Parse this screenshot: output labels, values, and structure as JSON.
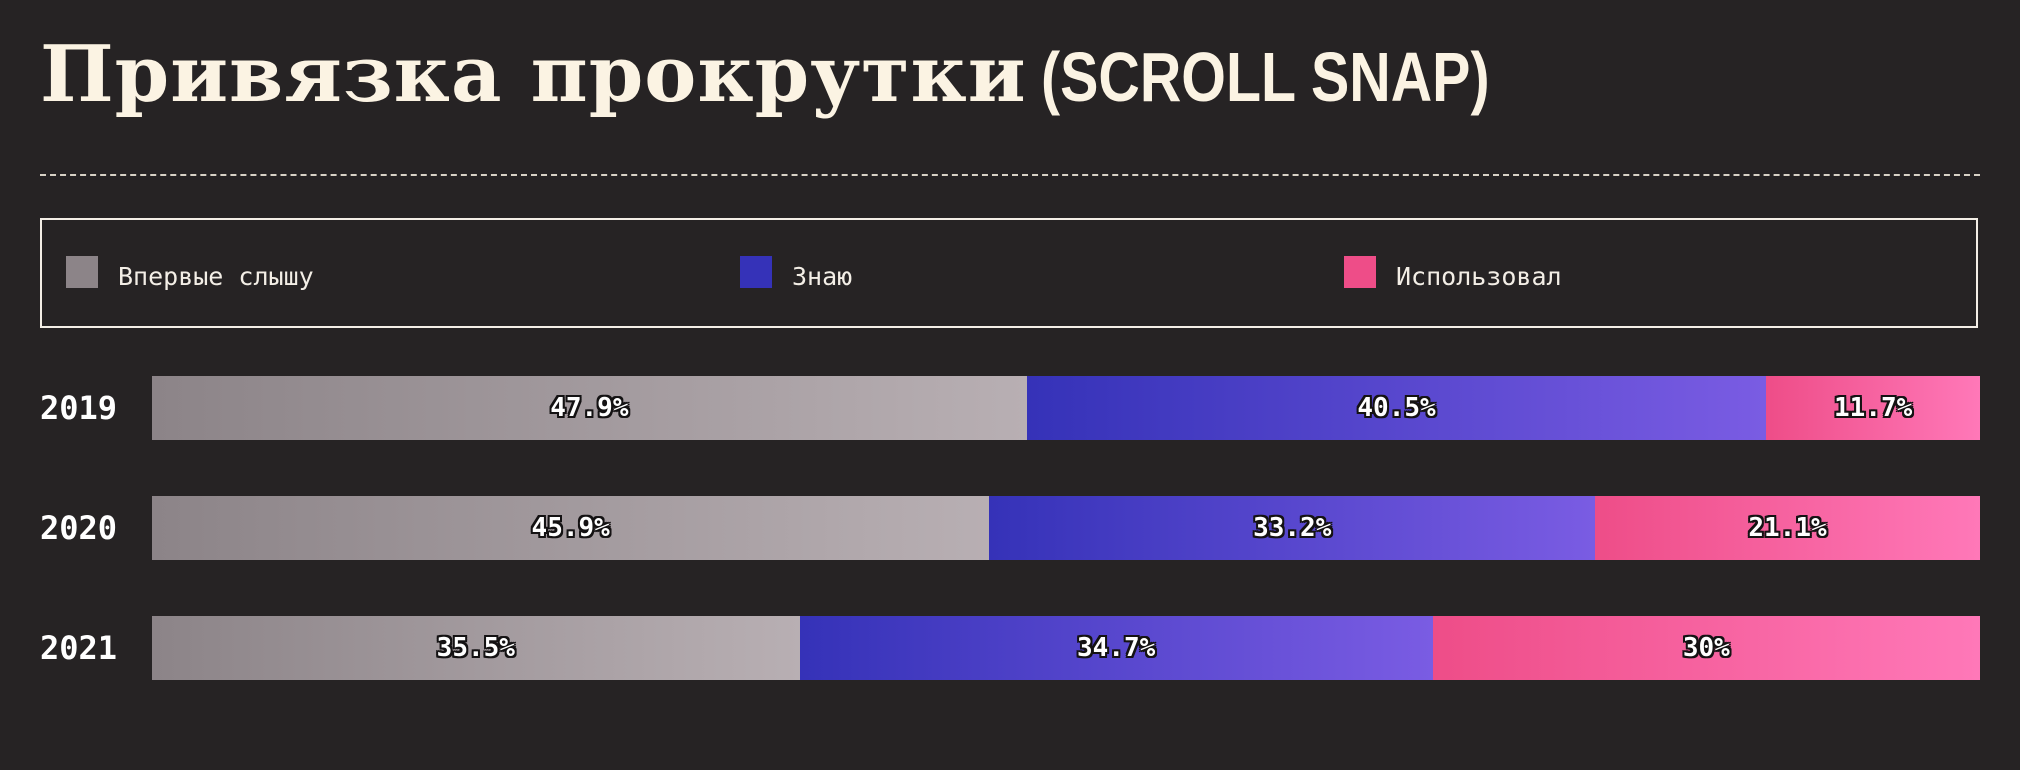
{
  "title": {
    "main": "Привязка прокрутки",
    "sub": "(SCROLL SNAP)"
  },
  "legend": [
    {
      "key": "never",
      "label": "Впервые слышу"
    },
    {
      "key": "know",
      "label": "Знаю"
    },
    {
      "key": "used",
      "label": "Использовал"
    }
  ],
  "colors": {
    "background": "#262324",
    "title": "#FBF3E3",
    "never_start": "#8C8488",
    "never_end": "#B8AFB3",
    "know_start": "#3532B8",
    "know_end": "#7A5CE3",
    "used_start": "#EE4D88",
    "used_end": "#FF78B8"
  },
  "chart_data": {
    "type": "bar",
    "orientation": "horizontal",
    "stacked": true,
    "categories": [
      "2019",
      "2020",
      "2021"
    ],
    "series": [
      {
        "name": "Впервые слышу",
        "values": [
          47.9,
          45.9,
          35.5
        ],
        "labels": [
          "47.9%",
          "45.9%",
          "35.5%"
        ]
      },
      {
        "name": "Знаю",
        "values": [
          40.5,
          33.2,
          34.7
        ],
        "labels": [
          "40.5%",
          "33.2%",
          "34.7%"
        ]
      },
      {
        "name": "Использовал",
        "values": [
          11.7,
          21.1,
          30
        ],
        "labels": [
          "11.7%",
          "21.1%",
          "30%"
        ]
      }
    ],
    "xlim": [
      0,
      100
    ],
    "legend_position": "top"
  }
}
